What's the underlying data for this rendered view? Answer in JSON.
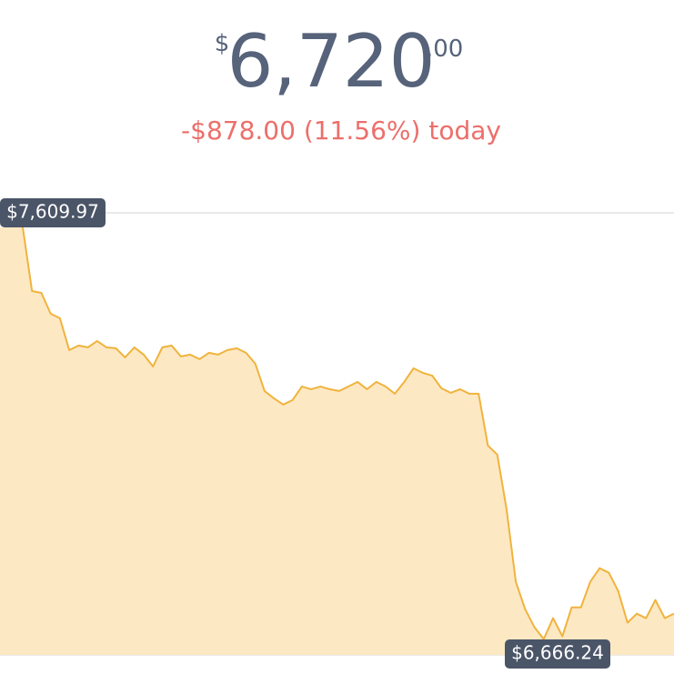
{
  "header": {
    "currency": "$",
    "price": "6,720",
    "cents": ".00",
    "change": "-$878.00 (11.56%) today"
  },
  "chart_data": {
    "type": "area",
    "color": "#f0b33c",
    "fill": "#fde8c4",
    "high_label": "$7,609.97",
    "low_label": "$6,666.24",
    "ylim": [
      6630,
      7610
    ],
    "values": [
      7609.97,
      7464.14,
      7459.97,
      7412.05,
      7401.64,
      7328.72,
      7339.14,
      7334.97,
      7349.56,
      7334.97,
      7332.89,
      7312.05,
      7334.97,
      7318.3,
      7291.22,
      7334.97,
      7339.14,
      7314.14,
      7318.3,
      7307.89,
      7322.47,
      7318.3,
      7328.72,
      7332.89,
      7322.47,
      7297.47,
      7234.97,
      7218.3,
      7203.72,
      7214.14,
      7245.39,
      7239.14,
      7245.39,
      7239.14,
      7234.97,
      7245.39,
      7255.8,
      7239.14,
      7255.8,
      7245.39,
      7228.72,
      7255.8,
      7287.05,
      7276.64,
      7270.39,
      7241.22,
      7230.8,
      7239.14,
      7228.72,
      7228.72,
      7109.97,
      7089.14,
      6964.14,
      6797.47,
      6734.97,
      6693.3,
      6666.24,
      6714.14,
      6672.47,
      6739.14,
      6739.14,
      6797.47,
      6828.72,
      6818.3,
      6776.64,
      6703.72,
      6724.55,
      6714.14,
      6755.8,
      6714.14,
      6724.55
    ]
  }
}
